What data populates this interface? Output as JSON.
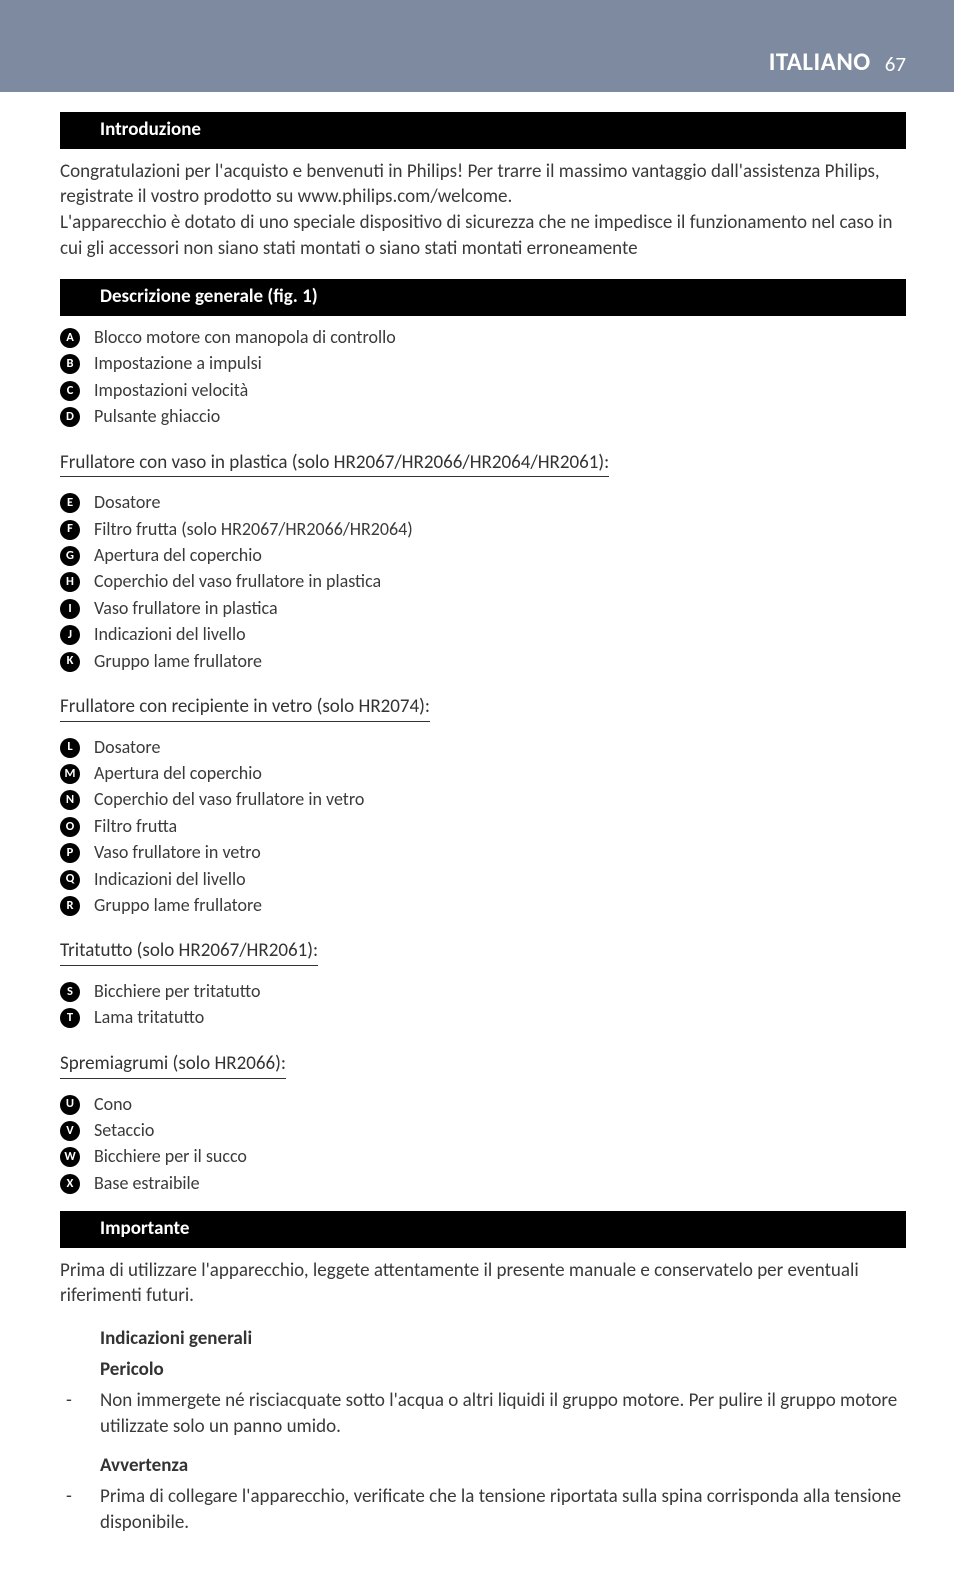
{
  "header": {
    "language": "ITALIANO",
    "page_number": "67",
    "header_bg": "#7d8aa0",
    "header_text_color": "#ffffff"
  },
  "colors": {
    "body_text": "#3a3a3a",
    "black_bar_bg": "#000000",
    "black_bar_text": "#ffffff",
    "page_bg": "#ffffff"
  },
  "sections": {
    "intro": {
      "title": "Introduzione",
      "para": "Congratulazioni per l'acquisto e benvenuti in Philips! Per trarre il massimo vantaggio dall'assistenza Philips, registrate il vostro prodotto su www.philips.com/welcome.\nL'apparecchio è dotato di uno speciale dispositivo di sicurezza che ne impedisce il funzionamento nel caso in cui gli accessori non siano stati montati o siano stati montati erroneamente"
    },
    "general_desc": {
      "title": "Descrizione generale (fig. 1)",
      "items_A": [
        {
          "letter": "A",
          "text": "Blocco motore con manopola di controllo"
        },
        {
          "letter": "B",
          "text": "Impostazione a impulsi"
        },
        {
          "letter": "C",
          "text": "Impostazioni velocità"
        },
        {
          "letter": "D",
          "text": "Pulsante ghiaccio"
        }
      ],
      "group1": {
        "heading": "Frullatore con vaso in plastica (solo HR2067/HR2066/HR2064/HR2061):",
        "items": [
          {
            "letter": "E",
            "text": "Dosatore"
          },
          {
            "letter": "F",
            "text": "Filtro frutta (solo HR2067/HR2066/HR2064)"
          },
          {
            "letter": "G",
            "text": "Apertura del coperchio"
          },
          {
            "letter": "H",
            "text": "Coperchio del vaso frullatore in plastica"
          },
          {
            "letter": "I",
            "text": "Vaso frullatore in plastica"
          },
          {
            "letter": "J",
            "text": "Indicazioni del livello"
          },
          {
            "letter": "K",
            "text": "Gruppo lame frullatore"
          }
        ]
      },
      "group2": {
        "heading": "Frullatore con recipiente in vetro (solo HR2074):",
        "items": [
          {
            "letter": "L",
            "text": "Dosatore"
          },
          {
            "letter": "M",
            "text": "Apertura del coperchio"
          },
          {
            "letter": "N",
            "text": "Coperchio del vaso frullatore in vetro"
          },
          {
            "letter": "O",
            "text": "Filtro frutta"
          },
          {
            "letter": "P",
            "text": "Vaso frullatore in vetro"
          },
          {
            "letter": "Q",
            "text": "Indicazioni del livello"
          },
          {
            "letter": "R",
            "text": "Gruppo lame frullatore"
          }
        ]
      },
      "group3": {
        "heading": "Tritatutto (solo HR2067/HR2061):",
        "items": [
          {
            "letter": "S",
            "text": "Bicchiere per tritatutto"
          },
          {
            "letter": "T",
            "text": "Lama tritatutto"
          }
        ]
      },
      "group4": {
        "heading": "Spremiagrumi (solo HR2066):",
        "items": [
          {
            "letter": "U",
            "text": "Cono"
          },
          {
            "letter": "V",
            "text": "Setaccio"
          },
          {
            "letter": "W",
            "text": "Bicchiere per il succo"
          },
          {
            "letter": "X",
            "text": "Base estraibile"
          }
        ]
      }
    },
    "important": {
      "title": "Importante",
      "para": "Prima di utilizzare l'apparecchio, leggete attentamente il presente manuale e conservatelo per eventuali riferimenti futuri.",
      "sub1": "Indicazioni generali",
      "danger": {
        "title": "Pericolo",
        "items": [
          "Non immergete né risciacquate sotto l'acqua o altri liquidi il gruppo motore. Per pulire il gruppo motore utilizzate solo un panno umido."
        ]
      },
      "warning": {
        "title": "Avvertenza",
        "items": [
          "Prima di collegare l'apparecchio, verificate che la tensione riportata sulla spina corrisponda alla tensione disponibile."
        ]
      }
    }
  }
}
